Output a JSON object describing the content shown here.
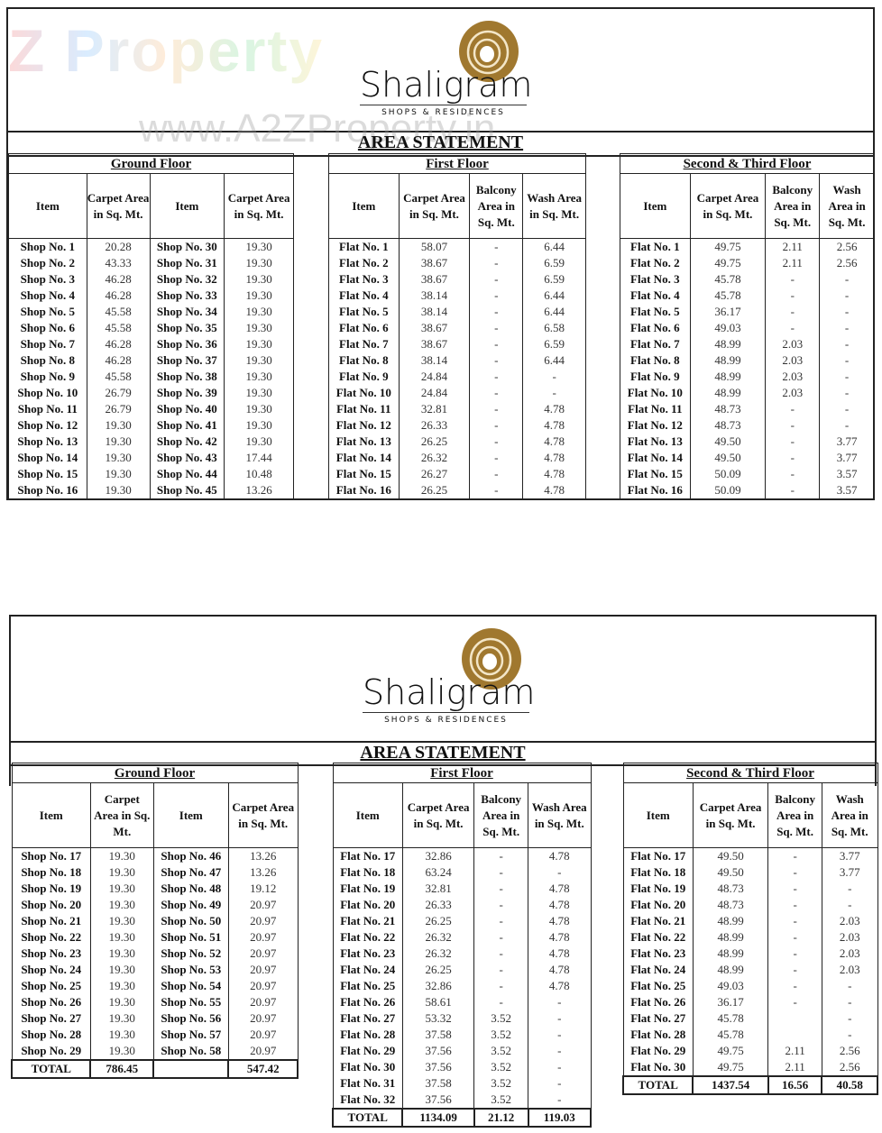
{
  "watermark": {
    "brand": "Z Property",
    "url": "www.A2ZProperty.in"
  },
  "colors": {
    "logo_gold": "#a0782f",
    "border": "#222222"
  },
  "sheets": [
    {
      "logo": {
        "name": "Shaligram",
        "tagline": "SHOPS & RESIDENCES"
      },
      "title": "AREA STATEMENT",
      "ground": {
        "heading": "Ground Floor",
        "headers": [
          "Item",
          "Carpet Area in Sq. Mt.",
          "Item",
          "Carpet Area in Sq. Mt."
        ],
        "rows": [
          [
            "Shop No. 1",
            "20.28",
            "Shop No. 30",
            "19.30"
          ],
          [
            "Shop No. 2",
            "43.33",
            "Shop No. 31",
            "19.30"
          ],
          [
            "Shop No. 3",
            "46.28",
            "Shop No. 32",
            "19.30"
          ],
          [
            "Shop No. 4",
            "46.28",
            "Shop No. 33",
            "19.30"
          ],
          [
            "Shop No. 5",
            "45.58",
            "Shop No. 34",
            "19.30"
          ],
          [
            "Shop No. 6",
            "45.58",
            "Shop No. 35",
            "19.30"
          ],
          [
            "Shop No. 7",
            "46.28",
            "Shop No. 36",
            "19.30"
          ],
          [
            "Shop No. 8",
            "46.28",
            "Shop No. 37",
            "19.30"
          ],
          [
            "Shop No. 9",
            "45.58",
            "Shop No. 38",
            "19.30"
          ],
          [
            "Shop No. 10",
            "26.79",
            "Shop No. 39",
            "19.30"
          ],
          [
            "Shop No. 11",
            "26.79",
            "Shop No. 40",
            "19.30"
          ],
          [
            "Shop No. 12",
            "19.30",
            "Shop No. 41",
            "19.30"
          ],
          [
            "Shop No. 13",
            "19.30",
            "Shop No. 42",
            "19.30"
          ],
          [
            "Shop No. 14",
            "19.30",
            "Shop No. 43",
            "17.44"
          ],
          [
            "Shop No. 15",
            "19.30",
            "Shop No. 44",
            "10.48"
          ],
          [
            "Shop No. 16",
            "19.30",
            "Shop No. 45",
            "13.26"
          ]
        ]
      },
      "first": {
        "heading": "First Floor",
        "headers": [
          "Item",
          "Carpet Area in Sq. Mt.",
          "Balcony Area in Sq. Mt.",
          "Wash Area in Sq. Mt."
        ],
        "rows": [
          [
            "Flat No. 1",
            "58.07",
            "-",
            "6.44"
          ],
          [
            "Flat No. 2",
            "38.67",
            "-",
            "6.59"
          ],
          [
            "Flat No. 3",
            "38.67",
            "-",
            "6.59"
          ],
          [
            "Flat No. 4",
            "38.14",
            "-",
            "6.44"
          ],
          [
            "Flat No. 5",
            "38.14",
            "-",
            "6.44"
          ],
          [
            "Flat No. 6",
            "38.67",
            "-",
            "6.58"
          ],
          [
            "Flat No. 7",
            "38.67",
            "-",
            "6.59"
          ],
          [
            "Flat No. 8",
            "38.14",
            "-",
            "6.44"
          ],
          [
            "Flat No. 9",
            "24.84",
            "-",
            "-"
          ],
          [
            "Flat No. 10",
            "24.84",
            "-",
            "-"
          ],
          [
            "Flat No. 11",
            "32.81",
            "-",
            "4.78"
          ],
          [
            "Flat No. 12",
            "26.33",
            "-",
            "4.78"
          ],
          [
            "Flat No. 13",
            "26.25",
            "-",
            "4.78"
          ],
          [
            "Flat No. 14",
            "26.32",
            "-",
            "4.78"
          ],
          [
            "Flat No. 15",
            "26.27",
            "-",
            "4.78"
          ],
          [
            "Flat No. 16",
            "26.25",
            "-",
            "4.78"
          ]
        ]
      },
      "second": {
        "heading": "Second & Third Floor",
        "headers": [
          "Item",
          "Carpet Area in Sq. Mt.",
          "Balcony Area in Sq. Mt.",
          "Wash Area in Sq. Mt."
        ],
        "rows": [
          [
            "Flat No. 1",
            "49.75",
            "2.11",
            "2.56"
          ],
          [
            "Flat No. 2",
            "49.75",
            "2.11",
            "2.56"
          ],
          [
            "Flat No. 3",
            "45.78",
            "-",
            "-"
          ],
          [
            "Flat No. 4",
            "45.78",
            "-",
            "-"
          ],
          [
            "Flat No. 5",
            "36.17",
            "-",
            "-"
          ],
          [
            "Flat No. 6",
            "49.03",
            "-",
            "-"
          ],
          [
            "Flat No. 7",
            "48.99",
            "2.03",
            "-"
          ],
          [
            "Flat No. 8",
            "48.99",
            "2.03",
            "-"
          ],
          [
            "Flat No. 9",
            "48.99",
            "2.03",
            "-"
          ],
          [
            "Flat No. 10",
            "48.99",
            "2.03",
            "-"
          ],
          [
            "Flat No. 11",
            "48.73",
            "-",
            "-"
          ],
          [
            "Flat No. 12",
            "48.73",
            "-",
            "-"
          ],
          [
            "Flat No. 13",
            "49.50",
            "-",
            "3.77"
          ],
          [
            "Flat No. 14",
            "49.50",
            "-",
            "3.77"
          ],
          [
            "Flat No. 15",
            "50.09",
            "-",
            "3.57"
          ],
          [
            "Flat No. 16",
            "50.09",
            "-",
            "3.57"
          ]
        ]
      }
    },
    {
      "logo": {
        "name": "Shaligram",
        "tagline": "SHOPS & RESIDENCES"
      },
      "title": "AREA STATEMENT",
      "ground": {
        "heading": "Ground Floor",
        "headers": [
          "Item",
          "Carpet Area in Sq. Mt.",
          "Item",
          "Carpet Area in Sq. Mt."
        ],
        "rows": [
          [
            "Shop No. 17",
            "19.30",
            "Shop No. 46",
            "13.26"
          ],
          [
            "Shop No. 18",
            "19.30",
            "Shop No. 47",
            "13.26"
          ],
          [
            "Shop No. 19",
            "19.30",
            "Shop No. 48",
            "19.12"
          ],
          [
            "Shop No. 20",
            "19.30",
            "Shop No. 49",
            "20.97"
          ],
          [
            "Shop No. 21",
            "19.30",
            "Shop No. 50",
            "20.97"
          ],
          [
            "Shop No. 22",
            "19.30",
            "Shop No. 51",
            "20.97"
          ],
          [
            "Shop No. 23",
            "19.30",
            "Shop No. 52",
            "20.97"
          ],
          [
            "Shop No. 24",
            "19.30",
            "Shop No. 53",
            "20.97"
          ],
          [
            "Shop No. 25",
            "19.30",
            "Shop No. 54",
            "20.97"
          ],
          [
            "Shop No. 26",
            "19.30",
            "Shop No. 55",
            "20.97"
          ],
          [
            "Shop No. 27",
            "19.30",
            "Shop No. 56",
            "20.97"
          ],
          [
            "Shop No. 28",
            "19.30",
            "Shop No. 57",
            "20.97"
          ],
          [
            "Shop No. 29",
            "19.30",
            "Shop No. 58",
            "20.97"
          ]
        ],
        "total": [
          "TOTAL",
          "786.45",
          "",
          "547.42"
        ]
      },
      "first": {
        "heading": "First Floor",
        "headers": [
          "Item",
          "Carpet Area in Sq. Mt.",
          "Balcony Area in Sq. Mt.",
          "Wash Area in Sq. Mt."
        ],
        "rows": [
          [
            "Flat No. 17",
            "32.86",
            "-",
            "4.78"
          ],
          [
            "Flat No. 18",
            "63.24",
            "-",
            "-"
          ],
          [
            "Flat No. 19",
            "32.81",
            "-",
            "4.78"
          ],
          [
            "Flat No. 20",
            "26.33",
            "-",
            "4.78"
          ],
          [
            "Flat No. 21",
            "26.25",
            "-",
            "4.78"
          ],
          [
            "Flat No. 22",
            "26.32",
            "-",
            "4.78"
          ],
          [
            "Flat No. 23",
            "26.32",
            "-",
            "4.78"
          ],
          [
            "Flat No. 24",
            "26.25",
            "-",
            "4.78"
          ],
          [
            "Flat No. 25",
            "32.86",
            "-",
            "4.78"
          ],
          [
            "Flat No. 26",
            "58.61",
            "-",
            "-"
          ],
          [
            "Flat No. 27",
            "53.32",
            "3.52",
            "-"
          ],
          [
            "Flat No. 28",
            "37.58",
            "3.52",
            "-"
          ],
          [
            "Flat No. 29",
            "37.56",
            "3.52",
            "-"
          ],
          [
            "Flat No. 30",
            "37.56",
            "3.52",
            "-"
          ],
          [
            "Flat No. 31",
            "37.58",
            "3.52",
            "-"
          ],
          [
            "Flat No. 32",
            "37.56",
            "3.52",
            "-"
          ]
        ],
        "total": [
          "TOTAL",
          "1134.09",
          "21.12",
          "119.03"
        ]
      },
      "second": {
        "heading": "Second & Third Floor",
        "headers": [
          "Item",
          "Carpet Area in Sq. Mt.",
          "Balcony Area in Sq. Mt.",
          "Wash Area in Sq. Mt."
        ],
        "rows": [
          [
            "Flat No. 17",
            "49.50",
            "-",
            "3.77"
          ],
          [
            "Flat No. 18",
            "49.50",
            "-",
            "3.77"
          ],
          [
            "Flat No. 19",
            "48.73",
            "-",
            "-"
          ],
          [
            "Flat No. 20",
            "48.73",
            "-",
            "-"
          ],
          [
            "Flat No. 21",
            "48.99",
            "-",
            "2.03"
          ],
          [
            "Flat No. 22",
            "48.99",
            "-",
            "2.03"
          ],
          [
            "Flat No. 23",
            "48.99",
            "-",
            "2.03"
          ],
          [
            "Flat No. 24",
            "48.99",
            "-",
            "2.03"
          ],
          [
            "Flat No. 25",
            "49.03",
            "-",
            "-"
          ],
          [
            "Flat No. 26",
            "36.17",
            "-",
            "-"
          ],
          [
            "Flat No. 27",
            "45.78",
            "",
            "-"
          ],
          [
            "Flat No. 28",
            "45.78",
            "",
            "-"
          ],
          [
            "Flat No. 29",
            "49.75",
            "2.11",
            "2.56"
          ],
          [
            "Flat No. 30",
            "49.75",
            "2.11",
            "2.56"
          ]
        ],
        "total": [
          "TOTAL",
          "1437.54",
          "16.56",
          "40.58"
        ]
      }
    }
  ]
}
